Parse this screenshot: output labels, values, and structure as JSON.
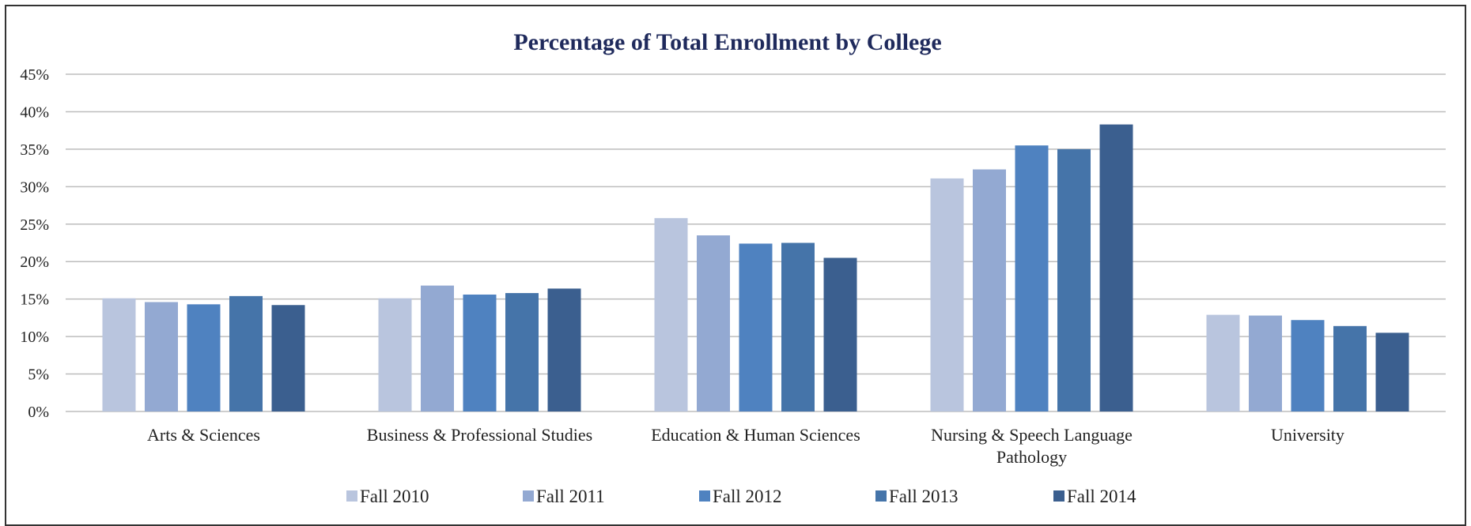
{
  "chart_data": {
    "type": "bar",
    "title": "Percentage of Total Enrollment by College",
    "categories": [
      "Arts & Sciences",
      "Business & Professional Studies",
      "Education & Human Sciences",
      "Nursing & Speech Language Pathology",
      "University"
    ],
    "category_label_lines": [
      [
        "Arts & Sciences"
      ],
      [
        "Business & Professional Studies"
      ],
      [
        "Education & Human Sciences"
      ],
      [
        "Nursing & Speech Language",
        "Pathology"
      ],
      [
        "University"
      ]
    ],
    "series": [
      {
        "name": "Fall 2010",
        "color": "#b9c5de",
        "values": [
          15.1,
          15.1,
          25.8,
          31.1,
          12.9
        ]
      },
      {
        "name": "Fall 2011",
        "color": "#93a9d2",
        "values": [
          14.6,
          16.8,
          23.5,
          32.3,
          12.8
        ]
      },
      {
        "name": "Fall 2012",
        "color": "#4f82c0",
        "values": [
          14.3,
          15.6,
          22.4,
          35.5,
          12.2
        ]
      },
      {
        "name": "Fall 2013",
        "color": "#4574a9",
        "values": [
          15.4,
          15.8,
          22.5,
          35.0,
          11.4
        ]
      },
      {
        "name": "Fall 2014",
        "color": "#3b5f8f",
        "values": [
          14.2,
          16.4,
          20.5,
          38.3,
          10.5
        ]
      }
    ],
    "ylim": [
      0,
      45
    ],
    "yticks": [
      "0%",
      "5%",
      "10%",
      "15%",
      "20%",
      "25%",
      "30%",
      "35%",
      "40%",
      "45%"
    ],
    "y_tick_values": [
      0,
      5,
      10,
      15,
      20,
      25,
      30,
      35,
      40,
      45
    ],
    "grid": true,
    "legend_position": "bottom",
    "colors": {
      "title": "#1f2a5c",
      "gridline": "#bdbdbd",
      "text": "#222222"
    }
  }
}
